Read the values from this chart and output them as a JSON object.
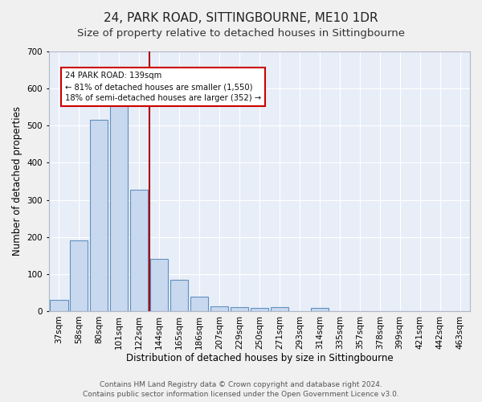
{
  "title_line1": "24, PARK ROAD, SITTINGBOURNE, ME10 1DR",
  "title_line2": "Size of property relative to detached houses in Sittingbourne",
  "xlabel": "Distribution of detached houses by size in Sittingbourne",
  "ylabel": "Number of detached properties",
  "footer_line1": "Contains HM Land Registry data © Crown copyright and database right 2024.",
  "footer_line2": "Contains public sector information licensed under the Open Government Licence v3.0.",
  "categories": [
    "37sqm",
    "58sqm",
    "80sqm",
    "101sqm",
    "122sqm",
    "144sqm",
    "165sqm",
    "186sqm",
    "207sqm",
    "229sqm",
    "250sqm",
    "271sqm",
    "293sqm",
    "314sqm",
    "335sqm",
    "357sqm",
    "378sqm",
    "399sqm",
    "421sqm",
    "442sqm",
    "463sqm"
  ],
  "values": [
    30,
    190,
    515,
    560,
    328,
    140,
    85,
    40,
    13,
    10,
    9,
    10,
    0,
    8,
    0,
    0,
    0,
    0,
    0,
    0,
    0
  ],
  "bar_color": "#c8d8ee",
  "bar_edge_color": "#6090c0",
  "vline_color": "#aa0000",
  "annotation_text_line1": "24 PARK ROAD: 139sqm",
  "annotation_text_line2": "← 81% of detached houses are smaller (1,550)",
  "annotation_text_line3": "18% of semi-detached houses are larger (352) →",
  "annotation_box_color": "#ffffff",
  "annotation_box_edge_color": "#cc0000",
  "ylim": [
    0,
    700
  ],
  "yticks": [
    0,
    100,
    200,
    300,
    400,
    500,
    600,
    700
  ],
  "background_color": "#e8eef8",
  "grid_color": "#ffffff",
  "title_fontsize": 11,
  "subtitle_fontsize": 9.5,
  "axis_label_fontsize": 8.5,
  "tick_fontsize": 7.5,
  "footer_fontsize": 6.5
}
